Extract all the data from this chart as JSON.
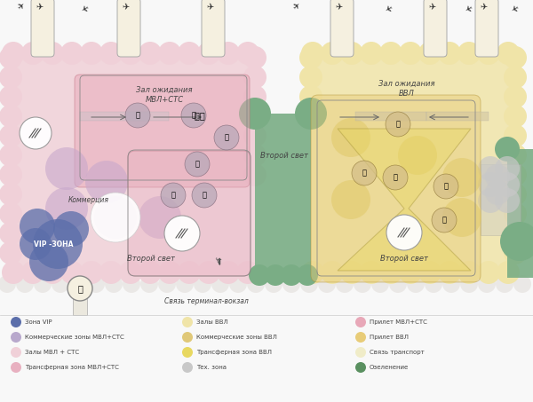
{
  "bg_color": "#f8f8f8",
  "legend_items_col1": [
    {
      "label": "Зона VIP",
      "color": "#5b6eaa"
    },
    {
      "label": "Коммерческие зоны МВЛ+СТС",
      "color": "#b8a8cc"
    },
    {
      "label": "Залы МВЛ + СТС",
      "color": "#f0d0d8"
    },
    {
      "label": "Трансферная зона МВЛ+СТС",
      "color": "#e8b0c0"
    }
  ],
  "legend_items_col2": [
    {
      "label": "Залы ВВЛ",
      "color": "#f0e4a8"
    },
    {
      "label": "Коммерческие зоны ВВЛ",
      "color": "#e0c878"
    },
    {
      "label": "Трансферная зона ВВЛ",
      "color": "#e8d860"
    },
    {
      "label": "Тех. зона",
      "color": "#c8c8c8"
    }
  ],
  "legend_items_col3": [
    {
      "label": "Прилет МВЛ+СТС",
      "color": "#e8a8b8"
    },
    {
      "label": "Прилет ВВЛ",
      "color": "#e8cc78"
    },
    {
      "label": "Связь транспорт",
      "color": "#f0ecc8"
    },
    {
      "label": "Озеленение",
      "color": "#5a9060"
    }
  ],
  "pink_main": "#f0d0d8",
  "pink_comm": "#c8a8cc",
  "pink_transfer": "#e8b0c0",
  "pink_arrival": "#e8a8b8",
  "beige_main": "#f0e4a8",
  "beige_comm": "#e0c868",
  "beige_transfer": "#e8d860",
  "beige_arrival": "#e8cc78",
  "green": "#7aad85",
  "gray": "#c8c8c8",
  "vip": "#5b6eaa",
  "pier_fill": "#f5f0e0",
  "pier_edge": "#aaaaaa",
  "cloud_bottom_color": "#e8e8e8",
  "text_dark": "#444444",
  "line_dark": "#555555",
  "icon_left_bg": "#b8a8b8",
  "icon_right_bg": "#d4be88"
}
